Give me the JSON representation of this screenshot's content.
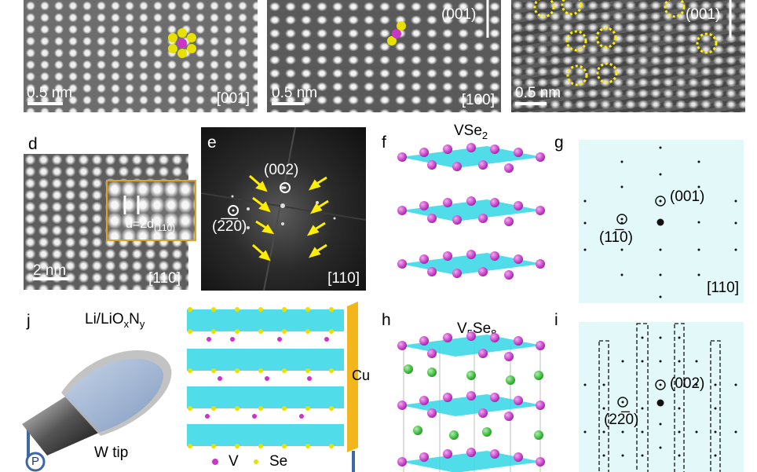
{
  "panel_a": {
    "scale": "0.5 nm",
    "zone": "[001]"
  },
  "panel_b": {
    "scale": "0.5 nm",
    "zone": "[100]",
    "plane": "(001)"
  },
  "panel_c": {
    "scale": "0.5 nm",
    "plane": "(001)"
  },
  "panel_d": {
    "letter": "d",
    "scale": "2 nm",
    "zone": "[110]",
    "inset_main": "d=2d",
    "inset_sub": "(110)"
  },
  "panel_e": {
    "letter": "e",
    "spot_002": "(002)",
    "spot_220": "(2̅2̅0)",
    "zone": "[110]"
  },
  "panel_f": {
    "letter": "f",
    "formula_main": "VSe",
    "formula_sub": "2"
  },
  "panel_g": {
    "letter": "g",
    "spot_001": "(001)",
    "spot_110": "(11̅0)",
    "zone": "[110]"
  },
  "panel_h": {
    "letter": "h",
    "formula_main": "V",
    "formula_sub1": "5",
    "formula_mid": "Se",
    "formula_sub2": "8"
  },
  "panel_i": {
    "letter": "i",
    "spot_002": "(002)",
    "spot_220": "(22̅0)"
  },
  "panel_j": {
    "letter": "j",
    "coating_main": "Li/LiO",
    "coating_x": "x",
    "coating_n": "N",
    "coating_y": "y",
    "tip": "W tip",
    "probe": "P",
    "electrode": "Cu",
    "legend_v": "V",
    "legend_se": "Se"
  },
  "colors": {
    "vanadium": "#cc33cc",
    "selenium": "#e8e000",
    "octahedra": "#33d6e6",
    "green_atom": "#3cc63c",
    "arrow": "#ffee00",
    "copper": "#f2b51c",
    "diffraction_bg": "#e3f8f9"
  }
}
